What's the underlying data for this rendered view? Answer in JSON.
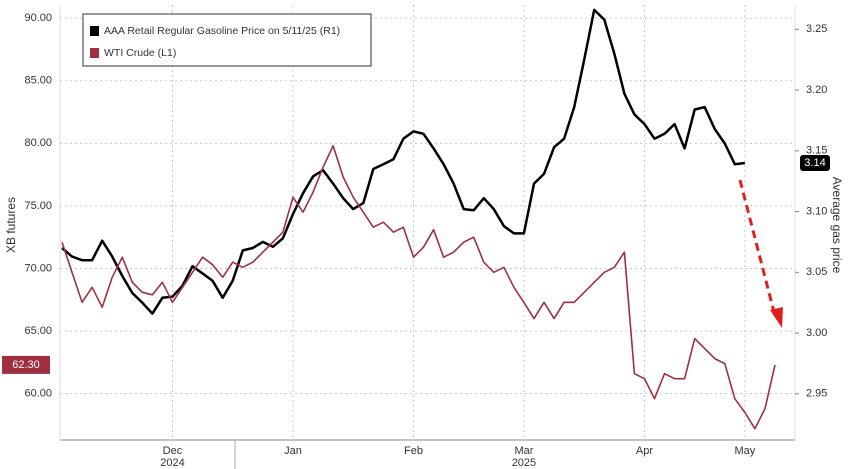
{
  "chart_data": {
    "type": "line",
    "categories": [
      null,
      null,
      null,
      null,
      null,
      null,
      null,
      null,
      null,
      null,
      null,
      "Dec",
      null,
      null,
      null,
      null,
      null,
      null,
      null,
      null,
      null,
      null,
      null,
      "Jan",
      null,
      null,
      null,
      null,
      null,
      null,
      null,
      null,
      null,
      null,
      null,
      "Feb",
      null,
      null,
      null,
      null,
      null,
      null,
      null,
      null,
      null,
      null,
      "Mar",
      null,
      null,
      null,
      null,
      null,
      null,
      null,
      null,
      null,
      null,
      null,
      "Apr",
      null,
      null,
      null,
      null,
      null,
      null,
      null,
      null,
      null,
      "May",
      null,
      null,
      null
    ],
    "years": [
      null,
      null,
      null,
      null,
      null,
      null,
      null,
      null,
      null,
      null,
      null,
      "2024",
      null,
      null,
      null,
      null,
      null,
      null,
      null,
      null,
      null,
      null,
      null,
      null,
      null,
      null,
      null,
      null,
      null,
      null,
      null,
      null,
      null,
      null,
      null,
      null,
      null,
      null,
      null,
      null,
      null,
      null,
      null,
      null,
      null,
      null,
      "2025",
      null,
      null,
      null,
      null,
      null,
      null,
      null,
      null,
      null,
      null,
      null,
      null,
      null,
      null,
      null,
      null,
      null,
      null,
      null,
      null,
      null,
      null,
      null,
      null,
      null
    ],
    "series": [
      {
        "name": "AAA Retail Regular Gasoline Price on 5/11/25 (R1)",
        "color": "#000000",
        "axis": "y2",
        "last_label": "3.14",
        "values": [
          3.07,
          3.063,
          3.06,
          3.06,
          3.076,
          3.063,
          3.047,
          3.033,
          3.025,
          3.016,
          3.029,
          3.03,
          3.039,
          3.055,
          3.049,
          3.043,
          3.029,
          3.043,
          3.068,
          3.07,
          3.075,
          3.071,
          3.078,
          3.098,
          3.115,
          3.129,
          3.134,
          3.123,
          3.111,
          3.102,
          3.107,
          3.135,
          3.139,
          3.143,
          3.16,
          3.166,
          3.164,
          3.152,
          3.139,
          3.123,
          3.102,
          3.101,
          3.111,
          3.102,
          3.088,
          3.082,
          3.082,
          3.123,
          3.131,
          3.153,
          3.16,
          3.186,
          3.225,
          3.266,
          3.258,
          3.23,
          3.197,
          3.18,
          3.172,
          3.16,
          3.164,
          3.172,
          3.152,
          3.184,
          3.186,
          3.168,
          3.156,
          3.139,
          3.14,
          null,
          null,
          null
        ]
      },
      {
        "name": "WTI Crude (L1)",
        "color": "#a0303f",
        "last_label": "62.30",
        "values": [
          72.1,
          69.7,
          67.3,
          68.5,
          66.9,
          69.3,
          70.9,
          68.9,
          68.1,
          67.9,
          68.9,
          67.3,
          68.5,
          69.7,
          70.9,
          70.3,
          69.3,
          70.5,
          70.1,
          70.5,
          71.3,
          72.1,
          72.9,
          75.7,
          74.5,
          76.1,
          78.1,
          79.8,
          77.3,
          75.7,
          74.5,
          73.3,
          73.7,
          72.9,
          73.3,
          70.9,
          71.7,
          73.1,
          70.9,
          71.3,
          72.1,
          72.5,
          70.5,
          69.7,
          70.1,
          68.5,
          67.3,
          66.0,
          67.3,
          66.0,
          67.3,
          67.3,
          68.1,
          68.9,
          69.7,
          70.1,
          71.3,
          61.6,
          61.2,
          59.6,
          61.6,
          61.2,
          61.2,
          64.4,
          63.6,
          62.8,
          62.4,
          59.6,
          58.5,
          57.2,
          58.8,
          62.3
        ]
      }
    ],
    "ylabel": "XB futures",
    "y2label": "Average gas price",
    "ylim": [
      56.3,
      91.05
    ],
    "yticks": [
      {
        "value": 60,
        "label": "60.00"
      },
      {
        "value": 65,
        "label": "65.00"
      },
      {
        "value": 70,
        "label": "70.00"
      },
      {
        "value": 75,
        "label": "75.00"
      },
      {
        "value": 80,
        "label": "80.00"
      },
      {
        "value": 85,
        "label": "85.00"
      },
      {
        "value": 90,
        "label": "90.00"
      }
    ],
    "y2lim": [
      2.912,
      3.27
    ],
    "y2ticks": [
      2.95,
      {
        "value": 3.0,
        "label": "3.00"
      },
      3.05,
      {
        "value": 3.1,
        "label": "3.10"
      },
      3.15,
      {
        "value": 3.2,
        "label": "3.20"
      },
      3.25
    ],
    "grid": true
  }
}
